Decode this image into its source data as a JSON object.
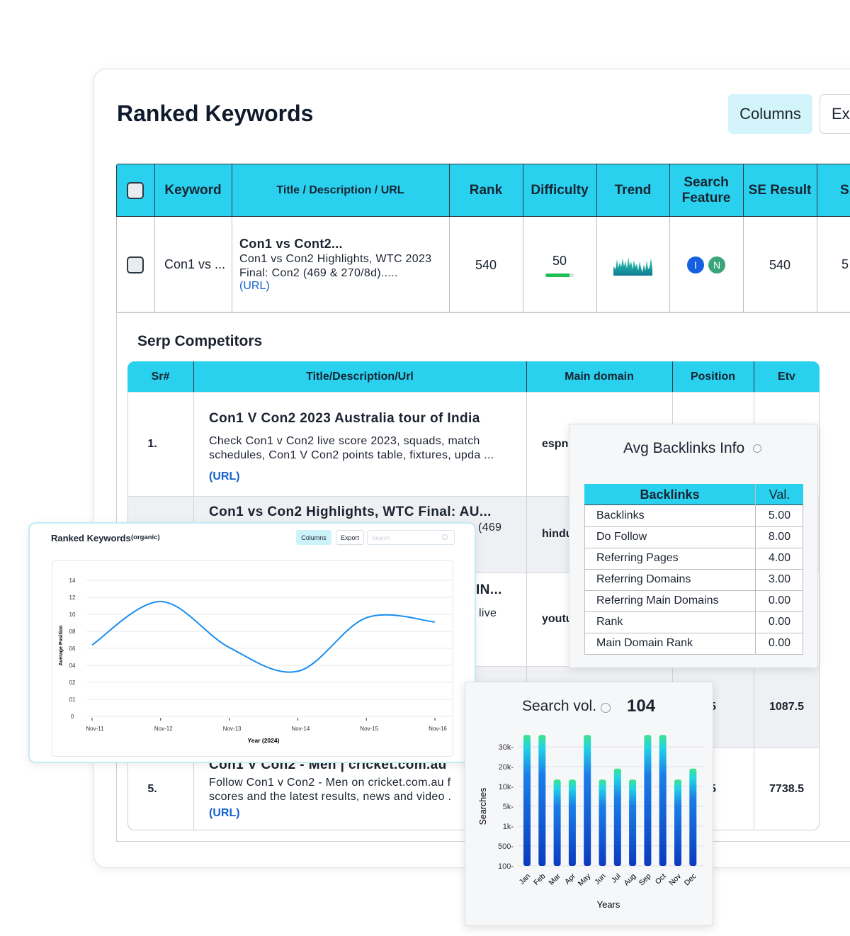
{
  "header": {
    "title": "Ranked Keywords",
    "buttons": [
      "Columns",
      "Export"
    ]
  },
  "keywords_table": {
    "headers": [
      "Keyword",
      "Title / Description / URL",
      "Rank",
      "Difficulty",
      "Trend",
      "Search Feature",
      "SE Result",
      "S"
    ],
    "rows": [
      {
        "keyword": "Con1 vs ...",
        "title": "Con1 vs Cont2...",
        "description": "Con1 vs Con2 Highlights, WTC 2023\nFinal: Con2 (469 & 270/8d).....",
        "url": "(URL)",
        "rank": "540",
        "difficulty": "50",
        "search_features": [
          "I",
          "N"
        ],
        "se_result": "540",
        "extra": "5"
      }
    ]
  },
  "serp_competitors": {
    "title": "Serp Competitors",
    "headers": [
      "Sr#",
      "Title/Description/Url",
      "Main domain",
      "Position",
      "Etv"
    ],
    "rows": [
      {
        "sr": "1.",
        "title": "Con1 V Con2 2023 Australia tour of India",
        "description": "Check Con1 v Con2 live score 2023, squads, match\nschedules, Con1 V Con2 points table, fixtures, upda ...",
        "url": "(URL)",
        "domain": "espn"
      },
      {
        "title": "Con1 vs Con2 Highlights, WTC Final: AU...",
        "description": "(469",
        "domain": "hindu"
      },
      {
        "title": "IN...",
        "description": "live",
        "domain": "youtu"
      },
      {
        "position": "5",
        "etv": "1087.5"
      },
      {
        "sr": "5.",
        "title": "Con1 V Con2 - Men | cricket.com.au",
        "description": "Follow Con1 v Con2 - Men on cricket.com.au f\nscores and the latest results, news and video .",
        "url": "(URL)",
        "position": "5",
        "etv": "7738.5"
      }
    ]
  },
  "backlinks": {
    "title": "Avg Backlinks Info",
    "headers": [
      "Backlinks",
      "Val."
    ],
    "rows": [
      [
        "Backlinks",
        "5.00"
      ],
      [
        "Do Follow",
        "8.00"
      ],
      [
        "Referring Pages",
        "4.00"
      ],
      [
        "Referring Domains",
        "3.00"
      ],
      [
        "Referring Main Domains",
        "0.00"
      ],
      [
        "Rank",
        "0.00"
      ],
      [
        "Main Domain Rank",
        "0.00"
      ]
    ]
  },
  "chart_data": [
    {
      "type": "line",
      "title": "Ranked Keywords",
      "subtitle": "(organic)",
      "controls": [
        "Columns",
        "Export"
      ],
      "search_placeholder": "Search",
      "categories": [
        "Nov-11",
        "Nov-12",
        "Nov-13",
        "Nov-14",
        "Nov-15",
        "Nov-16"
      ],
      "values": [
        6.4,
        11.5,
        6.1,
        3.3,
        9.6,
        9.1
      ],
      "color": "#1a8ef0",
      "x_label": "Year (2024)",
      "y_label": "Average Position",
      "ylim": [
        0,
        14
      ],
      "yticks": [
        14,
        12,
        10,
        {
          "value": 8,
          "label": "08"
        },
        {
          "value": 6,
          "label": "06"
        },
        {
          "value": 4,
          "label": "04"
        },
        {
          "value": 2,
          "label": "02"
        },
        {
          "value": 1,
          "label": "01"
        },
        0
      ],
      "grid": true
    },
    {
      "type": "bar",
      "title": "Search vol.",
      "total": 104,
      "categories": [
        "Jan",
        "Feb",
        "Mar",
        "Apr",
        "May",
        "Jun",
        "Jul",
        "Aug",
        "Sep",
        "Oct",
        "Nov",
        "Dec"
      ],
      "values": [
        36000,
        36000,
        13500,
        13500,
        36000,
        13500,
        19000,
        13500,
        36000,
        36000,
        13500,
        19000
      ],
      "colors": [
        "#3fe38a",
        "#1b7fe8",
        "#0b3bbf"
      ],
      "x_label": "Years",
      "y_label": "Searches",
      "ylim": [
        100,
        40000
      ],
      "yticks": [
        {
          "value": 30000,
          "label": "30k-"
        },
        {
          "value": 20000,
          "label": "20k-"
        },
        {
          "value": 10000,
          "label": "10k-"
        },
        {
          "value": 5000,
          "label": "5k-"
        },
        {
          "value": 1000,
          "label": "1k-"
        },
        {
          "value": 500,
          "label": "500-"
        },
        {
          "value": 100,
          "label": "100-"
        }
      ],
      "grid": true
    }
  ]
}
